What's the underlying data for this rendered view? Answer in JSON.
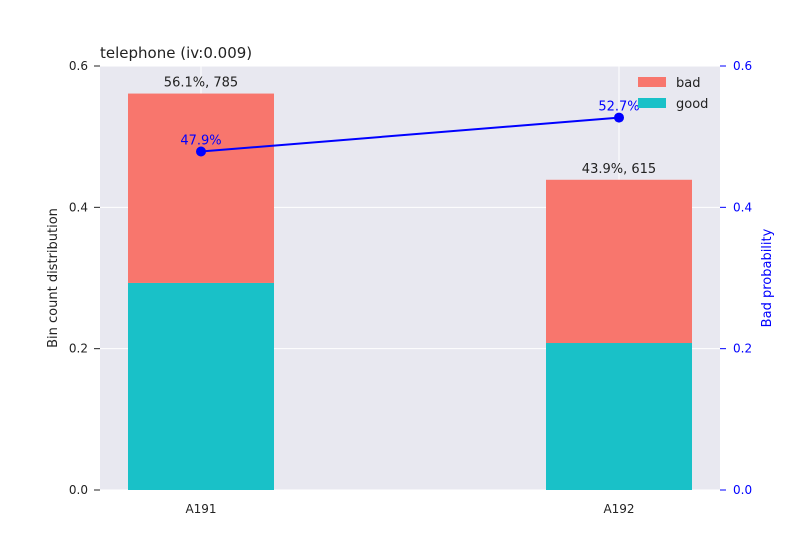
{
  "chart_data": {
    "type": "bar",
    "title": "telephone  (iv:0.009)",
    "categories": [
      "A191",
      "A192"
    ],
    "series": [
      {
        "name": "good",
        "values": [
          0.293,
          0.208
        ],
        "color": "#19c1c8"
      },
      {
        "name": "bad",
        "values": [
          0.268,
          0.231
        ],
        "color": "#f8766d"
      }
    ],
    "bar_labels": [
      "56.1%, 785",
      "43.9%, 615"
    ],
    "line": {
      "values": [
        0.479,
        0.527
      ],
      "labels": [
        "47.9%",
        "52.7%"
      ],
      "color": "#0000ff"
    },
    "ylabel": "Bin count distribution",
    "y2label": "Bad probability",
    "ylim": [
      0,
      0.6
    ],
    "y2lim": [
      0,
      0.6
    ],
    "yticks": [
      "0.0",
      "0.2",
      "0.4",
      "0.6"
    ],
    "y2ticks": [
      "0.0",
      "0.2",
      "0.4",
      "0.6"
    ],
    "ytick_values": [
      0,
      0.2,
      0.4,
      0.6
    ],
    "legend": [
      "bad",
      "good"
    ],
    "legend_position": "top-right",
    "grid": true,
    "colors": {
      "plot_bg": "#e8e8f0",
      "grid": "#ffffff",
      "axis2": "#0000ff",
      "text": "#222222"
    }
  }
}
